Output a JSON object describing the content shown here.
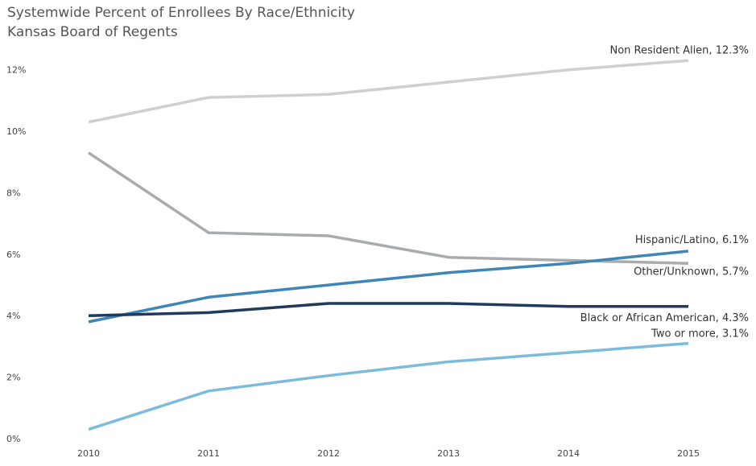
{
  "chart_data": {
    "type": "line",
    "title": "Systemwide Percent of Enrollees By Race/Ethnicity",
    "subtitle": "Kansas Board of Regents",
    "x": [
      "2010",
      "2011",
      "2012",
      "2013",
      "2014",
      "2015"
    ],
    "y_ticks": [
      "0%",
      "2%",
      "4%",
      "6%",
      "8%",
      "10%",
      "12%"
    ],
    "ylim": [
      0,
      12.7
    ],
    "grid": false,
    "legend": "none",
    "series": [
      {
        "name": "Non Resident Alien",
        "end_label": "Non Resident Alien, 12.3%",
        "color": "#cfcfcf",
        "values": [
          10.3,
          11.1,
          11.2,
          11.6,
          12.0,
          12.3
        ]
      },
      {
        "name": "Other/Unknown",
        "end_label": "Other/Unknown, 5.7%",
        "color": "#a9acae",
        "values": [
          9.3,
          6.7,
          6.6,
          5.9,
          5.8,
          5.7
        ]
      },
      {
        "name": "Hispanic/Latino",
        "end_label": "Hispanic/Latino, 6.1%",
        "color": "#3f86b8",
        "values": [
          3.8,
          4.6,
          5.0,
          5.4,
          5.7,
          6.1
        ]
      },
      {
        "name": "Black or African American",
        "end_label": "Black or African American, 4.3%",
        "color": "#1f3a5c",
        "values": [
          4.0,
          4.1,
          4.4,
          4.4,
          4.3,
          4.3
        ]
      },
      {
        "name": "Two or more",
        "end_label": "Two or more, 3.1%",
        "color": "#7bbcdb",
        "values": [
          0.3,
          1.55,
          2.05,
          2.5,
          2.8,
          3.1
        ]
      }
    ]
  }
}
